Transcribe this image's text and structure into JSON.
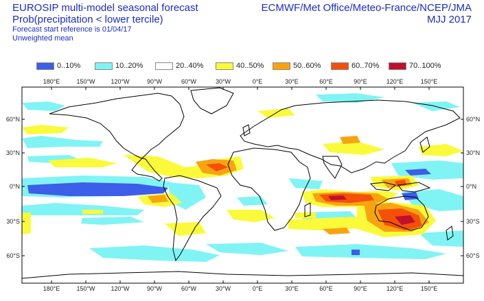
{
  "header": {
    "title_line1": "EUROSIP multi-model seasonal forecast",
    "title_line2": "Prob(precipitation < lower tercile)",
    "start_ref": "Forecast start reference is 01/04/17",
    "weighting": "Unweighted mean",
    "centres": "ECMWF/Met Office/Meteo-France/NCEP/JMA",
    "season": "MJJ 2017"
  },
  "legend": [
    {
      "label": "0..10%",
      "color": "#3c5ee8"
    },
    {
      "label": "10..20%",
      "color": "#80f4f4"
    },
    {
      "label": "20..40%",
      "color": "#ffffff"
    },
    {
      "label": "40..50%",
      "color": "#fafa3a"
    },
    {
      "label": "50..60%",
      "color": "#f8a410"
    },
    {
      "label": "60..70%",
      "color": "#f4500a"
    },
    {
      "label": "70..100%",
      "color": "#c0102c"
    }
  ],
  "axes": {
    "lon_labels": [
      "180°E",
      "150°W",
      "120°W",
      "90°W",
      "60°W",
      "30°W",
      "0°E",
      "30°E",
      "60°E",
      "90°E",
      "120°E",
      "150°E"
    ],
    "lat_labels": [
      "60°N",
      "30°N",
      "0°N",
      "30°S",
      "60°S"
    ]
  }
}
